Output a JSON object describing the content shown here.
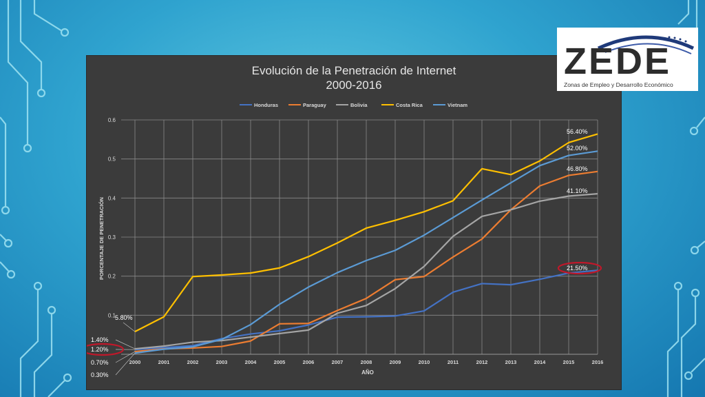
{
  "logo": {
    "name": "ZEDE",
    "subtitle": "Zonas de Empleo y Desarrollo Económico"
  },
  "chart_data": {
    "type": "line",
    "title": "Evolución de  la Penetración de  Internet",
    "subtitle": "2000-2016",
    "xlabel": "AÑO",
    "ylabel": "PORCENTAJE DE PENETRACIÓN",
    "ylim": [
      0,
      0.6
    ],
    "yticks": [
      "0.1",
      "0.2",
      "0.3",
      "0.4",
      "0.5",
      "0.6"
    ],
    "grid": true,
    "legend": "top",
    "categories": [
      "2000",
      "2001",
      "2002",
      "2003",
      "2004",
      "2005",
      "2006",
      "2007",
      "2008",
      "2009",
      "2010",
      "2011",
      "2012",
      "2013",
      "2014",
      "2015",
      "2016"
    ],
    "series": [
      {
        "name": "Honduras",
        "color": "#4472c4",
        "values": [
          0.012,
          0.017,
          0.022,
          0.04,
          0.052,
          0.06,
          0.075,
          0.095,
          0.096,
          0.098,
          0.111,
          0.159,
          0.181,
          0.178,
          0.192,
          0.208,
          0.215
        ]
      },
      {
        "name": "Paraguay",
        "color": "#ed7d31",
        "values": [
          0.007,
          0.014,
          0.016,
          0.02,
          0.034,
          0.078,
          0.079,
          0.112,
          0.143,
          0.191,
          0.199,
          0.249,
          0.295,
          0.37,
          0.431,
          0.458,
          0.468
        ]
      },
      {
        "name": "Bolivia",
        "color": "#a5a5a5",
        "values": [
          0.014,
          0.021,
          0.031,
          0.035,
          0.044,
          0.053,
          0.062,
          0.105,
          0.125,
          0.168,
          0.225,
          0.302,
          0.353,
          0.37,
          0.392,
          0.405,
          0.411
        ]
      },
      {
        "name": "Costa Rica",
        "color": "#ffc000",
        "values": [
          0.058,
          0.096,
          0.199,
          0.203,
          0.208,
          0.221,
          0.25,
          0.285,
          0.323,
          0.343,
          0.365,
          0.393,
          0.475,
          0.46,
          0.495,
          0.542,
          0.564
        ]
      },
      {
        "name": "Vietnam",
        "color": "#5b9bd5",
        "values": [
          0.003,
          0.013,
          0.019,
          0.038,
          0.076,
          0.128,
          0.172,
          0.209,
          0.24,
          0.266,
          0.305,
          0.35,
          0.395,
          0.439,
          0.483,
          0.509,
          0.52
        ]
      }
    ],
    "annotations": {
      "left": [
        "5.80%",
        "1.40%",
        "1.20%",
        "0.70%",
        "0.30%"
      ],
      "right": [
        "56.40%",
        "52.00%",
        "46.80%",
        "41.10%",
        "21.50%"
      ],
      "highlighted": [
        "1.20%",
        "21.50%"
      ]
    }
  }
}
